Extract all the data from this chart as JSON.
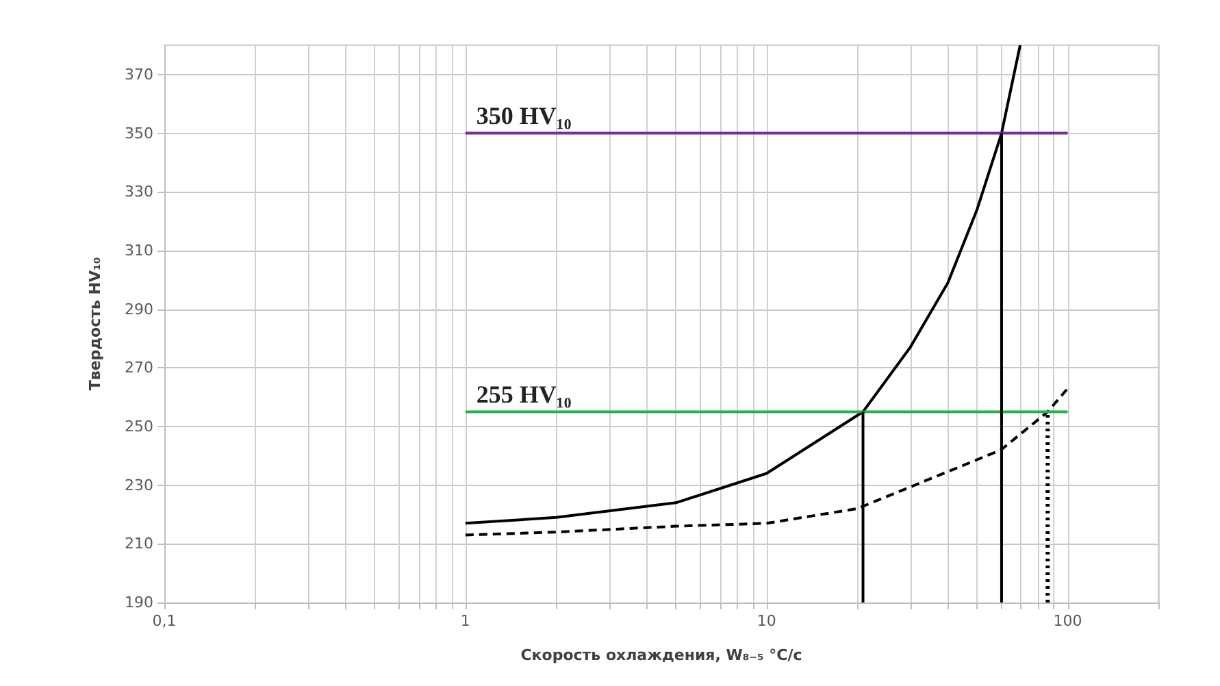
{
  "chart_data": {
    "type": "line",
    "xlabel": "Скорость охлаждения, W₈₋₅ °C/с",
    "ylabel": "Твердость HV₁₀",
    "log": "x",
    "grid": true,
    "legend": false,
    "marker": "none",
    "xlim": [
      0.1,
      200
    ],
    "xticks": [
      {
        "value": 0.1,
        "label": "0,1"
      },
      {
        "value": 0.2,
        "label": null
      },
      {
        "value": 0.3,
        "label": null
      },
      {
        "value": 0.4,
        "label": null
      },
      {
        "value": 0.5,
        "label": null
      },
      {
        "value": 0.6,
        "label": null
      },
      {
        "value": 0.7,
        "label": null
      },
      {
        "value": 0.8,
        "label": null
      },
      {
        "value": 0.9,
        "label": null
      },
      1,
      {
        "value": 2,
        "label": null
      },
      {
        "value": 3,
        "label": null
      },
      {
        "value": 4,
        "label": null
      },
      {
        "value": 5,
        "label": null
      },
      {
        "value": 6,
        "label": null
      },
      {
        "value": 7,
        "label": null
      },
      {
        "value": 8,
        "label": null
      },
      {
        "value": 9,
        "label": null
      },
      10,
      {
        "value": 20,
        "label": null
      },
      {
        "value": 30,
        "label": null
      },
      {
        "value": 40,
        "label": null
      },
      {
        "value": 50,
        "label": null
      },
      {
        "value": 60,
        "label": null
      },
      {
        "value": 70,
        "label": null
      },
      {
        "value": 80,
        "label": null
      },
      {
        "value": 90,
        "label": null
      },
      100,
      {
        "value": 200,
        "label": null
      }
    ],
    "ylim": [
      190,
      380
    ],
    "yticks": [
      190,
      210,
      230,
      250,
      270,
      290,
      310,
      330,
      350,
      370
    ],
    "series": [
      {
        "color": "#000000",
        "line_style": "solid",
        "x": [
          1,
          2,
          5,
          10,
          20.9,
          30,
          40,
          50,
          60.3,
          69.5
        ],
        "values": [
          217,
          219,
          224,
          234,
          255,
          277,
          299,
          324,
          350,
          380
        ]
      },
      {
        "color": "#000000",
        "line_style": "dashed",
        "x": [
          1,
          2,
          5,
          10,
          20,
          60,
          85.8,
          100
        ],
        "values": [
          213,
          214,
          216,
          217,
          222,
          242,
          255,
          263
        ]
      },
      {
        "name": "350 HV₁₀",
        "color": "#7030a0",
        "line_style": "solid",
        "x": [
          1,
          100
        ],
        "values": [
          350,
          350
        ]
      },
      {
        "name": "255 HV₁₀",
        "color": "#22b14c",
        "line_style": "solid",
        "x": [
          1,
          100
        ],
        "values": [
          255,
          255
        ]
      },
      {
        "color": "#000000",
        "line_style": "solid",
        "x": [
          20.9,
          20.9
        ],
        "values": [
          190,
          255
        ]
      },
      {
        "color": "#000000",
        "line_style": "solid",
        "x": [
          60.3,
          60.3
        ],
        "values": [
          190,
          350
        ]
      },
      {
        "color": "#000000",
        "line_style": "dotted",
        "x": [
          85.8,
          85.8
        ],
        "values": [
          190,
          255
        ]
      }
    ]
  }
}
